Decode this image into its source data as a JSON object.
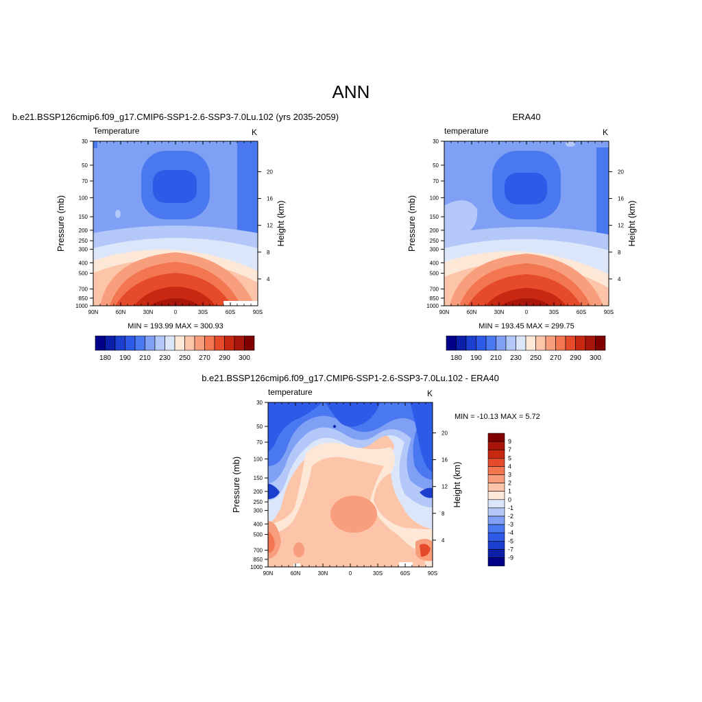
{
  "main_title": "ANN",
  "panels": [
    {
      "title": "b.e21.BSSP126cmip6.f09_g17.CMIP6-SSP1-2.6-SSP3-7.0Lu.102 (yrs 2035-2059)",
      "left_label": "Temperature",
      "right_label": "K",
      "ylabel": "Pressure (mb)",
      "ylabel_right": "Height (km)",
      "minmax": "MIN = 193.99  MAX = 300.93"
    },
    {
      "title": "ERA40",
      "left_label": "temperature",
      "right_label": "K",
      "ylabel": "Pressure (mb)",
      "ylabel_right": "Height (km)",
      "minmax": "MIN = 193.45  MAX = 299.75"
    },
    {
      "title": "b.e21.BSSP126cmip6.f09_g17.CMIP6-SSP1-2.6-SSP3-7.0Lu.102 - ERA40",
      "left_label": "temperature",
      "right_label": "K",
      "ylabel": "Pressure (mb)",
      "ylabel_right": "Height (km)",
      "minmax": "MIN = -10.13  MAX =   5.72"
    }
  ],
  "colors": {
    "abs_scale": [
      "#00008b",
      "#0b1fa8",
      "#1d3fcf",
      "#2e5ae8",
      "#4a78f0",
      "#7fa0f5",
      "#b3c8f8",
      "#dbe6fb",
      "#fde8d8",
      "#fcc4a8",
      "#f99e7c",
      "#f2764f",
      "#e54a2a",
      "#c82812",
      "#a8150a",
      "#800000"
    ],
    "diff_scale": [
      "#00008b",
      "#0b1fa8",
      "#1d3fcf",
      "#2e5ae8",
      "#4a78f0",
      "#7fa0f5",
      "#b3c8f8",
      "#dbe6fb",
      "#fde8d8",
      "#fcc4a8",
      "#f99e7c",
      "#f2764f",
      "#e54a2a",
      "#c82812",
      "#a8150a",
      "#800000"
    ]
  },
  "chart_data": [
    {
      "type": "heatmap",
      "title": "b.e21.BSSP126cmip6.f09_g17.CMIP6-SSP1-2.6-SSP3-7.0Lu.102 (yrs 2035-2059)",
      "ylabel": "Pressure (mb)",
      "xlabel": "",
      "x_ticks": [
        "90N",
        "60N",
        "30N",
        "0",
        "30S",
        "60S",
        "90S"
      ],
      "y_ticks": [
        "30",
        "50",
        "70",
        "100",
        "150",
        "200",
        "250",
        "300",
        "400",
        "500",
        "700",
        "850",
        "1000"
      ],
      "height_ticks": [
        "4",
        "8",
        "12",
        "16",
        "20"
      ],
      "colorbar_labels": [
        "180",
        "190",
        "210",
        "230",
        "250",
        "270",
        "290",
        "300"
      ],
      "min": 193.99,
      "max": 300.93
    },
    {
      "type": "heatmap",
      "title": "ERA40",
      "ylabel": "Pressure (mb)",
      "xlabel": "",
      "x_ticks": [
        "90N",
        "60N",
        "30N",
        "0",
        "30S",
        "60S",
        "90S"
      ],
      "y_ticks": [
        "30",
        "50",
        "70",
        "100",
        "150",
        "200",
        "250",
        "300",
        "400",
        "500",
        "700",
        "850",
        "1000"
      ],
      "height_ticks": [
        "4",
        "8",
        "12",
        "16",
        "20"
      ],
      "colorbar_labels": [
        "180",
        "190",
        "210",
        "230",
        "250",
        "270",
        "290",
        "300"
      ],
      "min": 193.45,
      "max": 299.75
    },
    {
      "type": "heatmap",
      "title": "b.e21.BSSP126cmip6.f09_g17.CMIP6-SSP1-2.6-SSP3-7.0Lu.102 - ERA40",
      "ylabel": "Pressure (mb)",
      "xlabel": "",
      "x_ticks": [
        "90N",
        "60N",
        "30N",
        "0",
        "30S",
        "60S",
        "90S"
      ],
      "y_ticks": [
        "30",
        "50",
        "70",
        "100",
        "150",
        "200",
        "250",
        "300",
        "400",
        "500",
        "700",
        "850",
        "1000"
      ],
      "height_ticks": [
        "4",
        "8",
        "12",
        "16",
        "20"
      ],
      "colorbar_labels": [
        "9",
        "7",
        "5",
        "4",
        "3",
        "2",
        "1",
        "0",
        "-1",
        "-2",
        "-3",
        "-4",
        "-5",
        "-7",
        "-9"
      ],
      "min": -10.13,
      "max": 5.72
    }
  ]
}
